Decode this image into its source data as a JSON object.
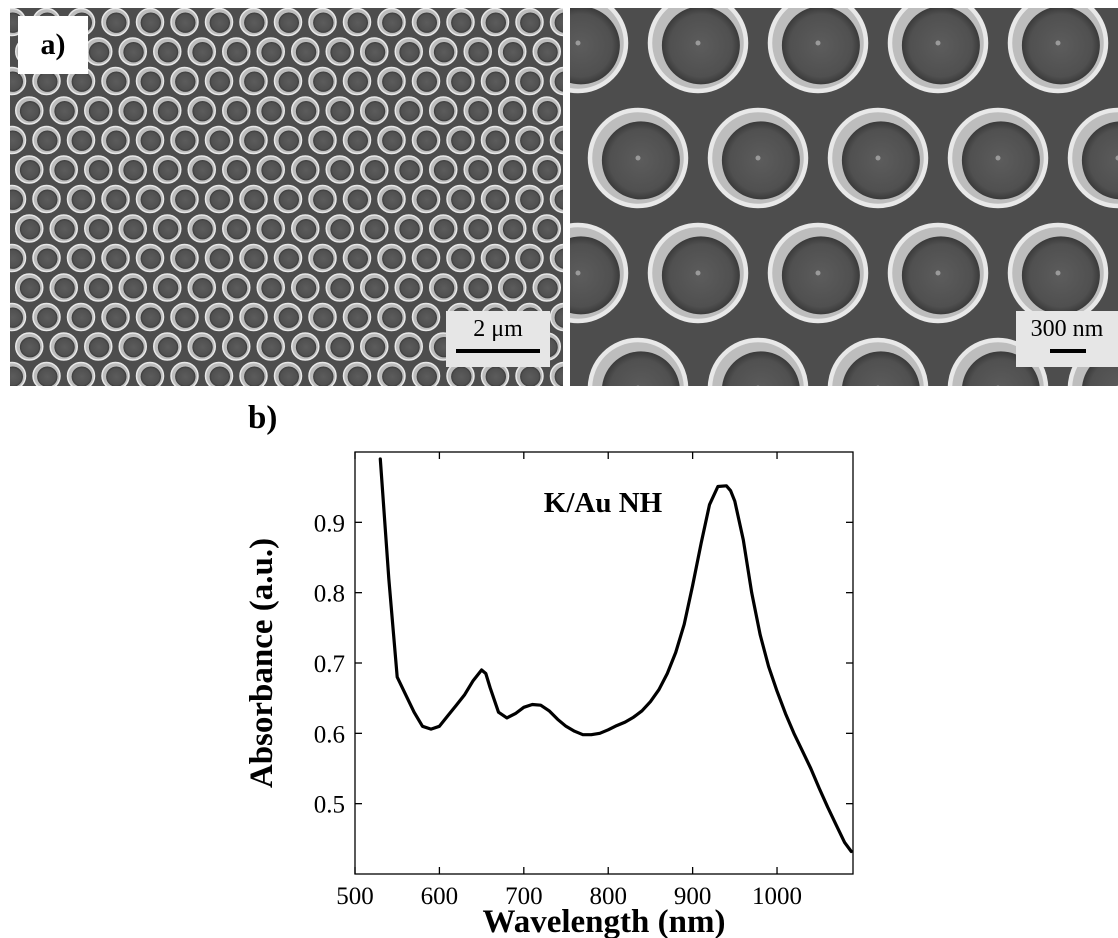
{
  "figure": {
    "panel_a": {
      "label": "a)",
      "left_image": {
        "scale_bar_label": "2 μm",
        "description_icon": "sem-micrograph-icon"
      },
      "right_image": {
        "scale_bar_label": "300 nm",
        "description_icon": "sem-micrograph-icon"
      }
    },
    "panel_b": {
      "label": "b)"
    }
  },
  "chart_data": {
    "type": "line",
    "annotation": "K/Au NH",
    "xlabel": "Wavelength (nm)",
    "ylabel": "Absorbance (a.u.)",
    "xlim": [
      500,
      1090
    ],
    "ylim": [
      0.4,
      1.0
    ],
    "xticks": [
      500,
      600,
      700,
      800,
      900,
      1000
    ],
    "yticks": [
      0.5,
      0.6,
      0.7,
      0.8,
      0.9
    ],
    "grid": false,
    "series": [
      {
        "x": [
          530,
          540,
          550,
          560,
          570,
          580,
          590,
          600,
          610,
          620,
          630,
          640,
          650,
          655,
          660,
          670,
          680,
          690,
          700,
          710,
          720,
          730,
          740,
          750,
          760,
          770,
          780,
          790,
          800,
          810,
          820,
          830,
          840,
          850,
          860,
          870,
          880,
          890,
          900,
          910,
          920,
          930,
          940,
          945,
          950,
          960,
          970,
          980,
          990,
          1000,
          1010,
          1020,
          1030,
          1040,
          1050,
          1060,
          1070,
          1080,
          1088
        ],
        "y": [
          0.99,
          0.82,
          0.68,
          0.655,
          0.63,
          0.61,
          0.606,
          0.61,
          0.625,
          0.64,
          0.655,
          0.675,
          0.69,
          0.685,
          0.665,
          0.63,
          0.622,
          0.628,
          0.637,
          0.641,
          0.64,
          0.632,
          0.62,
          0.61,
          0.603,
          0.598,
          0.598,
          0.6,
          0.605,
          0.611,
          0.616,
          0.623,
          0.632,
          0.645,
          0.662,
          0.685,
          0.715,
          0.755,
          0.81,
          0.87,
          0.925,
          0.951,
          0.952,
          0.945,
          0.93,
          0.875,
          0.8,
          0.74,
          0.695,
          0.66,
          0.628,
          0.6,
          0.575,
          0.55,
          0.522,
          0.495,
          0.47,
          0.445,
          0.432
        ]
      }
    ]
  }
}
